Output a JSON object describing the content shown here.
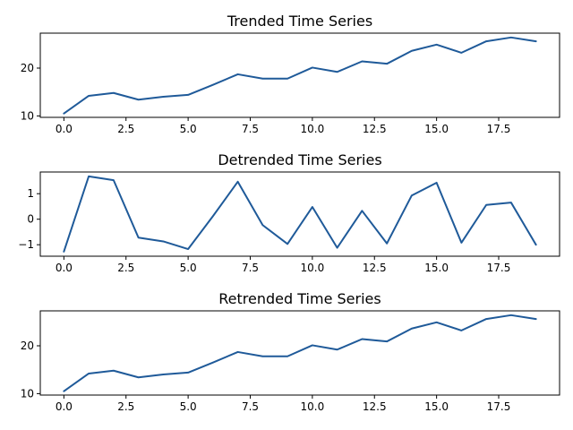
{
  "chart_data": [
    {
      "type": "line",
      "title": "Trended Time Series",
      "xlabel": "",
      "ylabel": "",
      "xlim": [
        -0.95,
        19.95
      ],
      "ylim": [
        9.7,
        27.3
      ],
      "x_ticks": [
        0,
        2.5,
        5,
        7.5,
        10,
        12.5,
        15,
        17.5
      ],
      "x_tick_labels": [
        "0.0",
        "2.5",
        "5.0",
        "7.5",
        "10.0",
        "12.5",
        "15.0",
        "17.5"
      ],
      "y_ticks": [
        10,
        20
      ],
      "y_tick_labels": [
        "10",
        "20"
      ],
      "grid": false,
      "series": [
        {
          "color": "#1f5a99",
          "x": [
            0,
            1,
            2,
            3,
            4,
            5,
            6,
            7,
            8,
            9,
            10,
            11,
            12,
            13,
            14,
            15,
            16,
            17,
            18,
            19
          ],
          "y": [
            10.5,
            14.2,
            14.8,
            13.4,
            14.0,
            14.4,
            16.5,
            18.7,
            17.8,
            17.8,
            20.1,
            19.2,
            21.4,
            20.9,
            23.6,
            24.9,
            23.2,
            25.6,
            26.4,
            25.6
          ]
        }
      ]
    },
    {
      "type": "line",
      "title": "Detrended Time Series",
      "xlabel": "",
      "ylabel": "",
      "xlim": [
        -0.95,
        19.95
      ],
      "ylim": [
        -1.45,
        1.85
      ],
      "x_ticks": [
        0,
        2.5,
        5,
        7.5,
        10,
        12.5,
        15,
        17.5
      ],
      "x_tick_labels": [
        "0.0",
        "2.5",
        "5.0",
        "7.5",
        "10.0",
        "12.5",
        "15.0",
        "17.5"
      ],
      "y_ticks": [
        -1,
        0,
        1
      ],
      "y_tick_labels": [
        "−1",
        "0",
        "1"
      ],
      "grid": false,
      "series": [
        {
          "color": "#1f5a99",
          "x": [
            0,
            1,
            2,
            3,
            4,
            5,
            6,
            7,
            8,
            9,
            10,
            11,
            12,
            13,
            14,
            15,
            16,
            17,
            18,
            19
          ],
          "y": [
            -1.27,
            1.68,
            1.53,
            -0.72,
            -0.87,
            -1.17,
            0.12,
            1.47,
            -0.23,
            -0.97,
            0.48,
            -1.12,
            0.33,
            -0.95,
            0.93,
            1.43,
            -0.92,
            0.56,
            0.65,
            -1.0
          ]
        }
      ]
    },
    {
      "type": "line",
      "title": "Retrended Time Series",
      "xlabel": "",
      "ylabel": "",
      "xlim": [
        -0.95,
        19.95
      ],
      "ylim": [
        9.7,
        27.3
      ],
      "x_ticks": [
        0,
        2.5,
        5,
        7.5,
        10,
        12.5,
        15,
        17.5
      ],
      "x_tick_labels": [
        "0.0",
        "2.5",
        "5.0",
        "7.5",
        "10.0",
        "12.5",
        "15.0",
        "17.5"
      ],
      "y_ticks": [
        10,
        20
      ],
      "y_tick_labels": [
        "10",
        "20"
      ],
      "grid": false,
      "series": [
        {
          "color": "#1f5a99",
          "x": [
            0,
            1,
            2,
            3,
            4,
            5,
            6,
            7,
            8,
            9,
            10,
            11,
            12,
            13,
            14,
            15,
            16,
            17,
            18,
            19
          ],
          "y": [
            10.5,
            14.2,
            14.8,
            13.4,
            14.0,
            14.4,
            16.5,
            18.7,
            17.8,
            17.8,
            20.1,
            19.2,
            21.4,
            20.9,
            23.6,
            24.9,
            23.2,
            25.6,
            26.4,
            25.6
          ]
        }
      ]
    }
  ]
}
